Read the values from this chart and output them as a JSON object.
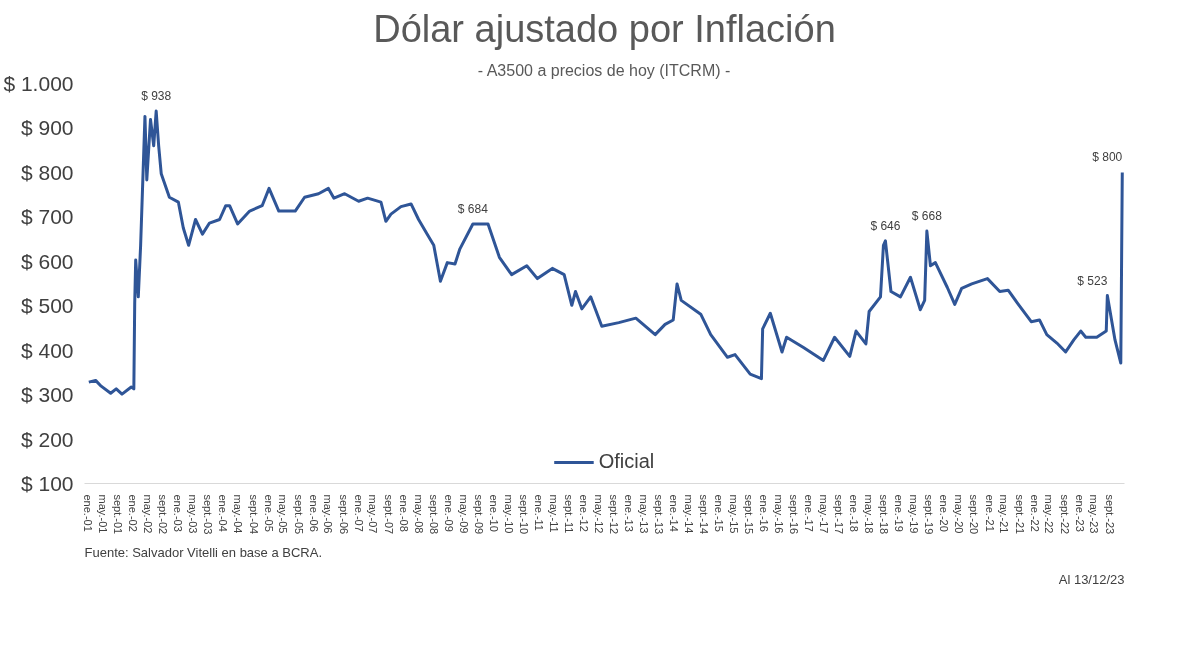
{
  "chart_data": {
    "type": "line",
    "title": "Dólar ajustado por Inflación",
    "subtitle": "- A3500 a precios de hoy (ITCRM) -",
    "x": [
      "2001-01-05",
      "2001-03-01",
      "2001-04-15",
      "2001-07-01",
      "2001-08-15",
      "2001-10-01",
      "2001-12-15",
      "2002-01-05",
      "2002-01-12",
      "2002-01-20",
      "2002-02-10",
      "2002-03-01",
      "2002-04-05",
      "2002-04-20",
      "2002-05-20",
      "2002-06-15",
      "2002-07-05",
      "2002-07-25",
      "2002-08-15",
      "2002-10-20",
      "2003-01-01",
      "2003-02-10",
      "2003-03-25",
      "2003-05-20",
      "2003-07-15",
      "2003-09-10",
      "2003-12-01",
      "2004-01-20",
      "2004-02-20",
      "2004-04-25",
      "2004-08-01",
      "2004-11-10",
      "2005-01-05",
      "2005-03-25",
      "2005-08-05",
      "2005-10-20",
      "2006-02-10",
      "2006-05-01",
      "2006-06-15",
      "2006-09-10",
      "2007-01-01",
      "2007-03-15",
      "2007-07-01",
      "2007-08-10",
      "2007-09-20",
      "2007-12-10",
      "2008-03-01",
      "2008-05-01",
      "2008-07-10",
      "2008-09-01",
      "2008-10-25",
      "2008-12-20",
      "2009-02-20",
      "2009-04-01",
      "2009-07-15",
      "2009-11-15",
      "2010-02-15",
      "2010-05-25",
      "2010-09-25",
      "2010-12-20",
      "2011-04-20",
      "2011-07-25",
      "2011-09-25",
      "2011-10-25",
      "2011-12-15",
      "2012-02-25",
      "2012-05-25",
      "2012-10-10",
      "2013-02-25",
      "2013-08-01",
      "2013-10-20",
      "2013-12-25",
      "2014-01-25",
      "2014-02-28",
      "2014-08-05",
      "2014-10-25",
      "2015-03-10",
      "2015-05-10",
      "2015-09-10",
      "2015-12-10",
      "2015-12-20",
      "2016-02-20",
      "2016-05-25",
      "2016-07-01",
      "2016-11-15",
      "2017-04-25",
      "2017-07-25",
      "2017-11-25",
      "2018-01-15",
      "2018-04-05",
      "2018-05-01",
      "2018-08-01",
      "2018-08-25",
      "2018-09-10",
      "2018-10-25",
      "2019-01-10",
      "2019-04-01",
      "2019-06-20",
      "2019-07-25",
      "2019-08-12",
      "2019-09-10",
      "2019-10-20",
      "2020-01-25",
      "2020-03-25",
      "2020-05-20",
      "2020-08-10",
      "2020-12-15",
      "2021-03-25",
      "2021-06-01",
      "2021-08-15",
      "2021-12-05",
      "2022-02-10",
      "2022-04-10",
      "2022-07-01",
      "2022-09-10",
      "2022-11-15",
      "2023-01-10",
      "2023-02-20",
      "2023-05-20",
      "2023-08-05",
      "2023-08-14",
      "2023-10-15",
      "2023-12-01",
      "2023-12-13"
    ],
    "series": [
      {
        "name": "Oficial",
        "color": "#2f5597",
        "values": [
          328,
          332,
          319,
          303,
          313,
          301,
          317,
          313,
          506,
          603,
          520,
          636,
          926,
          783,
          919,
          860,
          938,
          860,
          797,
          744,
          733,
          675,
          636,
          694,
          661,
          686,
          694,
          725,
          725,
          684,
          713,
          725,
          764,
          713,
          713,
          744,
          752,
          764,
          742,
          752,
          735,
          742,
          733,
          690,
          706,
          723,
          729,
          694,
          661,
          636,
          555,
          597,
          594,
          628,
          684,
          684,
          609,
          570,
          590,
          561,
          584,
          570,
          501,
          532,
          493,
          520,
          454,
          462,
          472,
          435,
          458,
          468,
          549,
          512,
          481,
          435,
          384,
          390,
          346,
          336,
          448,
          483,
          396,
          429,
          406,
          377,
          429,
          386,
          443,
          414,
          487,
          520,
          636,
          646,
          532,
          520,
          564,
          491,
          512,
          668,
          590,
          597,
          541,
          503,
          539,
          549,
          561,
          532,
          535,
          506,
          464,
          468,
          435,
          416,
          396,
          423,
          443,
          429,
          429,
          443,
          523,
          423,
          371,
          800
        ]
      }
    ],
    "ylim": [
      100,
      1000
    ],
    "yticks": [
      {
        "value": 100,
        "label": "$ 100"
      },
      {
        "value": 200,
        "label": "$ 200"
      },
      {
        "value": 300,
        "label": "$ 300"
      },
      {
        "value": 400,
        "label": "$ 400"
      },
      {
        "value": 500,
        "label": "$ 500"
      },
      {
        "value": 600,
        "label": "$ 600"
      },
      {
        "value": 700,
        "label": "$ 700"
      },
      {
        "value": 800,
        "label": "$ 800"
      },
      {
        "value": 900,
        "label": "$ 900"
      },
      {
        "value": 1000,
        "label": "$ 1.000"
      }
    ],
    "xlim": [
      "2000-12-01",
      "2023-12-31"
    ],
    "xticks": [
      {
        "value": "2001-01",
        "label": "ene.-01"
      },
      {
        "value": "2001-05",
        "label": "may.-01"
      },
      {
        "value": "2001-09",
        "label": "sept.-01"
      },
      {
        "value": "2002-01",
        "label": "ene.-02"
      },
      {
        "value": "2002-05",
        "label": "may.-02"
      },
      {
        "value": "2002-09",
        "label": "sept.-02"
      },
      {
        "value": "2003-01",
        "label": "ene.-03"
      },
      {
        "value": "2003-05",
        "label": "may.-03"
      },
      {
        "value": "2003-09",
        "label": "sept.-03"
      },
      {
        "value": "2004-01",
        "label": "ene.-04"
      },
      {
        "value": "2004-05",
        "label": "may.-04"
      },
      {
        "value": "2004-09",
        "label": "sept.-04"
      },
      {
        "value": "2005-01",
        "label": "ene.-05"
      },
      {
        "value": "2005-05",
        "label": "may.-05"
      },
      {
        "value": "2005-09",
        "label": "sept.-05"
      },
      {
        "value": "2006-01",
        "label": "ene.-06"
      },
      {
        "value": "2006-05",
        "label": "may.-06"
      },
      {
        "value": "2006-09",
        "label": "sept.-06"
      },
      {
        "value": "2007-01",
        "label": "ene.-07"
      },
      {
        "value": "2007-05",
        "label": "may.-07"
      },
      {
        "value": "2007-09",
        "label": "sept.-07"
      },
      {
        "value": "2008-01",
        "label": "ene.-08"
      },
      {
        "value": "2008-05",
        "label": "may.-08"
      },
      {
        "value": "2008-09",
        "label": "sept.-08"
      },
      {
        "value": "2009-01",
        "label": "ene.-09"
      },
      {
        "value": "2009-05",
        "label": "may.-09"
      },
      {
        "value": "2009-09",
        "label": "sept.-09"
      },
      {
        "value": "2010-01",
        "label": "ene.-10"
      },
      {
        "value": "2010-05",
        "label": "may.-10"
      },
      {
        "value": "2010-09",
        "label": "sept.-10"
      },
      {
        "value": "2011-01",
        "label": "ene.-11"
      },
      {
        "value": "2011-05",
        "label": "may.-11"
      },
      {
        "value": "2011-09",
        "label": "sept.-11"
      },
      {
        "value": "2012-01",
        "label": "ene.-12"
      },
      {
        "value": "2012-05",
        "label": "may.-12"
      },
      {
        "value": "2012-09",
        "label": "sept.-12"
      },
      {
        "value": "2013-01",
        "label": "ene.-13"
      },
      {
        "value": "2013-05",
        "label": "may.-13"
      },
      {
        "value": "2013-09",
        "label": "sept.-13"
      },
      {
        "value": "2014-01",
        "label": "ene.-14"
      },
      {
        "value": "2014-05",
        "label": "may.-14"
      },
      {
        "value": "2014-09",
        "label": "sept.-14"
      },
      {
        "value": "2015-01",
        "label": "ene.-15"
      },
      {
        "value": "2015-05",
        "label": "may.-15"
      },
      {
        "value": "2015-09",
        "label": "sept.-15"
      },
      {
        "value": "2016-01",
        "label": "ene.-16"
      },
      {
        "value": "2016-05",
        "label": "may.-16"
      },
      {
        "value": "2016-09",
        "label": "sept.-16"
      },
      {
        "value": "2017-01",
        "label": "ene.-17"
      },
      {
        "value": "2017-05",
        "label": "may.-17"
      },
      {
        "value": "2017-09",
        "label": "sept.-17"
      },
      {
        "value": "2018-01",
        "label": "ene.-18"
      },
      {
        "value": "2018-05",
        "label": "may.-18"
      },
      {
        "value": "2018-09",
        "label": "sept.-18"
      },
      {
        "value": "2019-01",
        "label": "ene.-19"
      },
      {
        "value": "2019-05",
        "label": "may.-19"
      },
      {
        "value": "2019-09",
        "label": "sept.-19"
      },
      {
        "value": "2020-01",
        "label": "ene.-20"
      },
      {
        "value": "2020-05",
        "label": "may.-20"
      },
      {
        "value": "2020-09",
        "label": "sept.-20"
      },
      {
        "value": "2021-01",
        "label": "ene.-21"
      },
      {
        "value": "2021-05",
        "label": "may.-21"
      },
      {
        "value": "2021-09",
        "label": "sept.-21"
      },
      {
        "value": "2022-01",
        "label": "ene.-22"
      },
      {
        "value": "2022-05",
        "label": "may.-22"
      },
      {
        "value": "2022-09",
        "label": "sept.-22"
      },
      {
        "value": "2023-01",
        "label": "ene.-23"
      },
      {
        "value": "2023-05",
        "label": "may.-23"
      },
      {
        "value": "2023-09",
        "label": "sept.-23"
      }
    ],
    "annotations": [
      {
        "text": "$ 938",
        "x": "2002-07-05",
        "y": 938
      },
      {
        "text": "$ 684",
        "x": "2009-07-15",
        "y": 684
      },
      {
        "text": "$ 646",
        "x": "2018-09-10",
        "y": 646
      },
      {
        "text": "$ 668",
        "x": "2019-08-12",
        "y": 668
      },
      {
        "text": "$ 523",
        "x": "2023-08-14",
        "y": 523
      },
      {
        "text": "$ 800",
        "x": "2023-12-13",
        "y": 800
      },
      "Fuente: Salvador Vitelli en base a BCRA.",
      "Al 13/12/23"
    ],
    "grid": false,
    "legend": "bottom",
    "marker": "none",
    "line_style": "solid"
  }
}
